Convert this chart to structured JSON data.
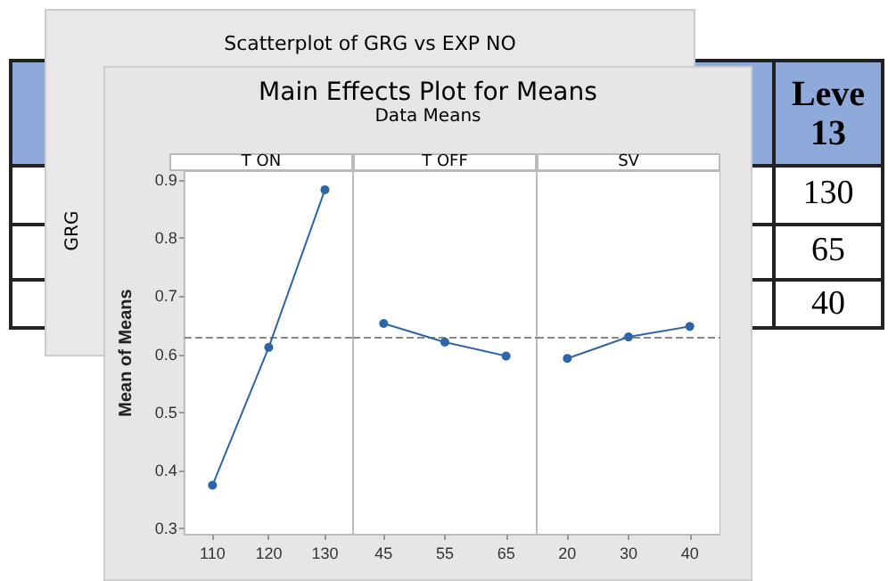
{
  "chart_data": [
    {
      "type": "other",
      "title": "Scatterplot of GRG vs EXP NO",
      "ylabel": "GRG"
    },
    {
      "type": "other",
      "annotations": [
        "Leve 13",
        "130",
        "65",
        "40"
      ]
    },
    {
      "type": "other",
      "title": "Main Effects Plot for Means",
      "subtitle": "Data Means"
    },
    {
      "type": "line",
      "title": "T ON",
      "ylabel": "Mean of Means",
      "categories": [
        "110",
        "120",
        "130"
      ],
      "series": [
        {
          "color": "#2e64a8",
          "values": [
            0.375,
            0.612,
            0.883
          ]
        }
      ],
      "ylim": [
        0.29,
        0.915
      ],
      "yticks": [
        0.3,
        0.4,
        0.5,
        0.6,
        0.7,
        0.8,
        0.9
      ],
      "ref_lines": [
        {
          "axis": "y",
          "value": 0.625,
          "color": "#888888",
          "line_style": "dashed"
        }
      ],
      "marker": "circle",
      "line_style": "solid",
      "grid": false
    },
    {
      "type": "line",
      "title": "T OFF",
      "categories": [
        "45",
        "55",
        "65"
      ],
      "series": [
        {
          "color": "#2e64a8",
          "values": [
            0.653,
            0.621,
            0.597
          ]
        }
      ],
      "ylim": [
        0.29,
        0.915
      ],
      "tick_labels": "x",
      "ref_lines": [
        {
          "axis": "y",
          "value": 0.625,
          "color": "#888888",
          "line_style": "dashed"
        }
      ],
      "marker": "circle",
      "line_style": "solid",
      "grid": false
    },
    {
      "type": "line",
      "title": "SV",
      "categories": [
        "20",
        "30",
        "40"
      ],
      "series": [
        {
          "color": "#2e64a8",
          "values": [
            0.593,
            0.63,
            0.648
          ]
        }
      ],
      "ylim": [
        0.29,
        0.915
      ],
      "tick_labels": "x",
      "ref_lines": [
        {
          "axis": "y",
          "value": 0.625,
          "color": "#888888",
          "line_style": "dashed"
        }
      ],
      "marker": "circle",
      "line_style": "solid",
      "grid": false
    }
  ]
}
